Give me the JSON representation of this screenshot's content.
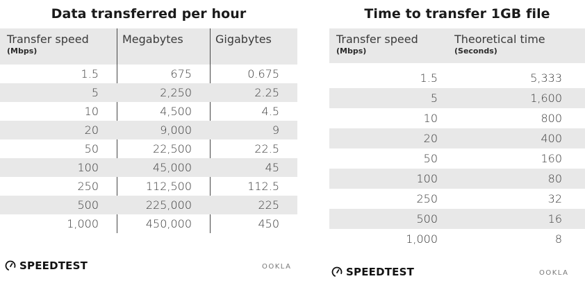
{
  "chart_data": [
    {
      "type": "table",
      "title": "Data transferred per hour",
      "columns": [
        {
          "name": "Transfer speed",
          "unit": "(Mbps)"
        },
        {
          "name": "Megabytes",
          "unit": ""
        },
        {
          "name": "Gigabytes",
          "unit": ""
        }
      ],
      "rows": [
        [
          "1.5",
          "675",
          "0.675"
        ],
        [
          "5",
          "2,250",
          "2.25"
        ],
        [
          "10",
          "4,500",
          "4.5"
        ],
        [
          "20",
          "9,000",
          "9"
        ],
        [
          "50",
          "22,500",
          "22.5"
        ],
        [
          "100",
          "45,000",
          "45"
        ],
        [
          "250",
          "112,500",
          "112.5"
        ],
        [
          "500",
          "225,000",
          "225"
        ],
        [
          "1,000",
          "450,000",
          "450"
        ]
      ]
    },
    {
      "type": "table",
      "title": "Time to transfer 1GB file",
      "columns": [
        {
          "name": "Transfer speed",
          "unit": "(Mbps)"
        },
        {
          "name": "Theoretical time",
          "unit": "(Seconds)"
        }
      ],
      "rows": [
        [
          "1.5",
          "5,333"
        ],
        [
          "5",
          "1,600"
        ],
        [
          "10",
          "800"
        ],
        [
          "20",
          "400"
        ],
        [
          "50",
          "160"
        ],
        [
          "100",
          "80"
        ],
        [
          "250",
          "32"
        ],
        [
          "500",
          "16"
        ],
        [
          "1,000",
          "8"
        ]
      ]
    }
  ],
  "branding": {
    "speedtest_label": "SPEEDTEST",
    "ookla_label": "OOKLA",
    "speedtest_icon": "gauge-icon"
  },
  "colors": {
    "row_shade": "#e8e8e8",
    "text": "#3a3a3a",
    "title": "#1a1a1a"
  }
}
